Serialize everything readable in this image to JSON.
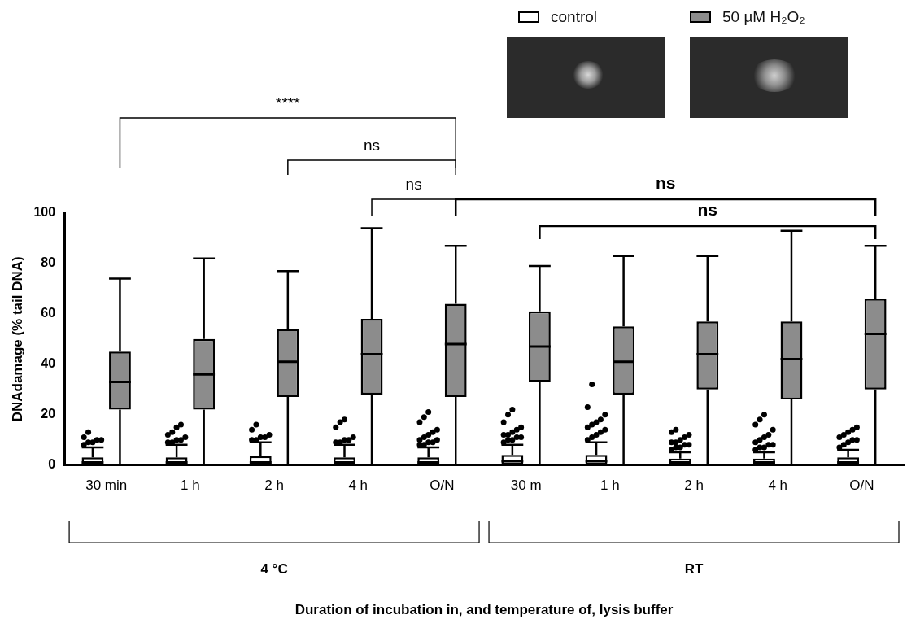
{
  "chart_data": {
    "type": "box",
    "x_label": "Duration of incubation in, and temperature of, lysis buffer",
    "y_label": "DNAdamage (% tail DNA)",
    "ylim": [
      0,
      100
    ],
    "yticks": [
      0,
      20,
      40,
      60,
      80,
      100
    ],
    "grid": false,
    "legend": "top right",
    "groups": [
      {
        "name": "4 °C",
        "categories": [
          "30 min",
          "1 h",
          "2 h",
          "4 h",
          "O/N"
        ]
      },
      {
        "name": "RT",
        "categories": [
          "30 m",
          "1 h",
          "2 h",
          "4 h",
          "O/N"
        ]
      }
    ],
    "series": [
      {
        "name": "control",
        "color": "#ffffff",
        "values": [
          {
            "min": 0,
            "q1": 0,
            "median": 1,
            "q3": 3,
            "max": 7,
            "outliers": [
              8,
              9,
              9,
              10,
              10,
              11,
              13
            ]
          },
          {
            "min": 0,
            "q1": 0,
            "median": 1,
            "q3": 3,
            "max": 8,
            "outliers": [
              9,
              9,
              10,
              10,
              11,
              12,
              13,
              15,
              16
            ]
          },
          {
            "min": 0,
            "q1": 0,
            "median": 1,
            "q3": 3.5,
            "max": 9,
            "outliers": [
              10,
              10,
              11,
              11,
              12,
              14,
              16
            ]
          },
          {
            "min": 0,
            "q1": 0,
            "median": 1,
            "q3": 3,
            "max": 8,
            "outliers": [
              9,
              9,
              10,
              10,
              11,
              15,
              17,
              18
            ]
          },
          {
            "min": 0,
            "q1": 0,
            "median": 1,
            "q3": 3,
            "max": 7,
            "outliers": [
              8,
              8,
              9,
              9,
              10,
              10,
              11,
              12,
              13,
              14,
              17,
              19,
              21
            ]
          },
          {
            "min": 0,
            "q1": 0,
            "median": 1.5,
            "q3": 4,
            "max": 8,
            "outliers": [
              9,
              10,
              10,
              11,
              11,
              12,
              12,
              13,
              14,
              15,
              17,
              20,
              22
            ]
          },
          {
            "min": 0,
            "q1": 0,
            "median": 1.5,
            "q3": 4,
            "max": 9,
            "outliers": [
              10,
              11,
              12,
              13,
              14,
              15,
              16,
              17,
              18,
              20,
              23,
              32
            ]
          },
          {
            "min": 0,
            "q1": 0,
            "median": 1,
            "q3": 2.5,
            "max": 5,
            "outliers": [
              6,
              7,
              7,
              8,
              8,
              9,
              9,
              10,
              11,
              12,
              13,
              14
            ]
          },
          {
            "min": 0,
            "q1": 0,
            "median": 1,
            "q3": 2.5,
            "max": 5,
            "outliers": [
              6,
              7,
              7,
              8,
              8,
              9,
              10,
              11,
              12,
              14,
              16,
              18,
              20
            ]
          },
          {
            "min": 0,
            "q1": 0,
            "median": 1,
            "q3": 3,
            "max": 6,
            "outliers": [
              7,
              8,
              9,
              10,
              10,
              11,
              12,
              13,
              14,
              15
            ]
          }
        ]
      },
      {
        "name": "50 µM H₂O₂",
        "color": "#8c8c8c",
        "values": [
          {
            "min": 0,
            "q1": 22,
            "median": 33,
            "q3": 45,
            "max": 74,
            "outliers": []
          },
          {
            "min": 0,
            "q1": 22,
            "median": 36,
            "q3": 50,
            "max": 82,
            "outliers": []
          },
          {
            "min": 0,
            "q1": 27,
            "median": 41,
            "q3": 54,
            "max": 77,
            "outliers": []
          },
          {
            "min": 0,
            "q1": 28,
            "median": 44,
            "q3": 58,
            "max": 94,
            "outliers": []
          },
          {
            "min": 0,
            "q1": 27,
            "median": 48,
            "q3": 64,
            "max": 87,
            "outliers": []
          },
          {
            "min": 0,
            "q1": 33,
            "median": 47,
            "q3": 61,
            "max": 79,
            "outliers": []
          },
          {
            "min": 0,
            "q1": 28,
            "median": 41,
            "q3": 55,
            "max": 83,
            "outliers": []
          },
          {
            "min": 0,
            "q1": 30,
            "median": 44,
            "q3": 57,
            "max": 83,
            "outliers": []
          },
          {
            "min": 0,
            "q1": 26,
            "median": 42,
            "q3": 57,
            "max": 93,
            "outliers": []
          },
          {
            "min": 0,
            "q1": 30,
            "median": 52,
            "q3": 66,
            "max": 87,
            "outliers": []
          }
        ]
      }
    ],
    "annotations": [
      {
        "text": "****",
        "from": [
          "4 °C",
          "30 min"
        ],
        "to": [
          "4 °C",
          "O/N"
        ]
      },
      {
        "text": "ns",
        "from": [
          "4 °C",
          "2 h"
        ],
        "to": [
          "4 °C",
          "O/N"
        ]
      },
      {
        "text": "ns",
        "from": [
          "4 °C",
          "4 h"
        ],
        "to": [
          "4 °C",
          "O/N"
        ]
      },
      {
        "text": "ns",
        "from": [
          "4 °C",
          "O/N"
        ],
        "to": [
          "RT",
          "O/N"
        ]
      },
      {
        "text": "ns",
        "from": [
          "RT",
          "30 m"
        ],
        "to": [
          "RT",
          "O/N"
        ]
      }
    ]
  }
}
